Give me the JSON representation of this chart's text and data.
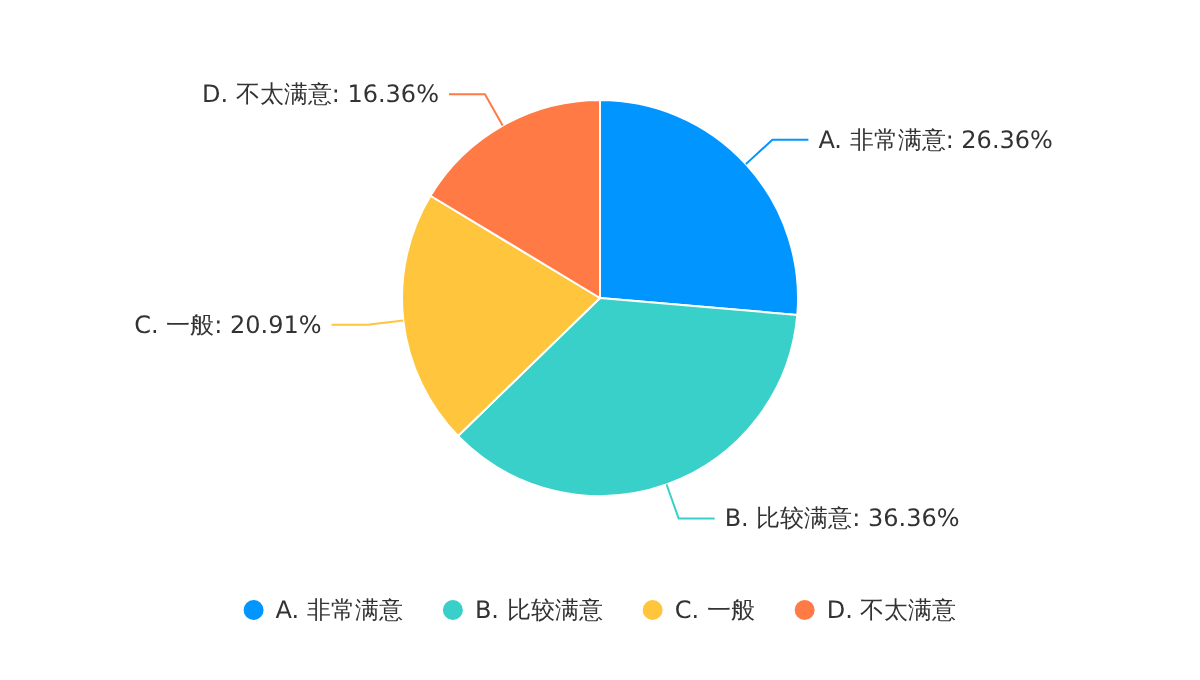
{
  "chart_data": {
    "type": "pie",
    "categories": [
      "A. 非常满意",
      "B. 比较满意",
      "C. 一般",
      "D. 不太满意"
    ],
    "values": [
      26.36,
      36.36,
      20.91,
      16.36
    ],
    "value_labels": [
      "A. 非常满意: 26.36%",
      "B. 比较满意: 36.36%",
      "C. 一般: 20.91%",
      "D. 不太满意: 16.36%"
    ],
    "colors": [
      "#0095ff",
      "#38d0c9",
      "#ffc53d",
      "#ff7a45"
    ],
    "legend": "bottom"
  }
}
